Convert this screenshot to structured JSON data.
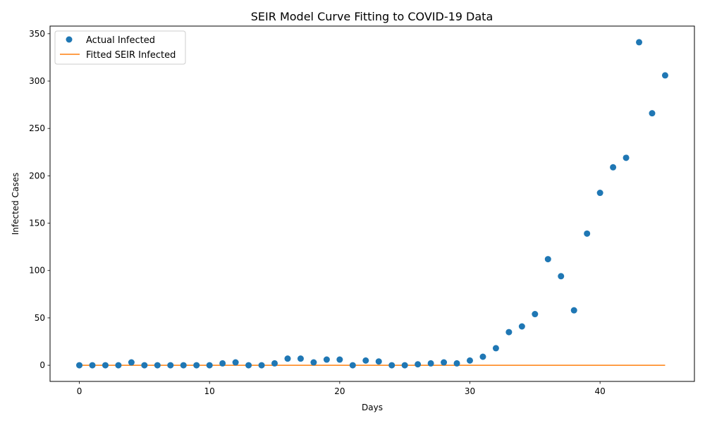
{
  "chart_data": {
    "type": "scatter",
    "title": "SEIR Model Curve Fitting to COVID-19 Data",
    "xlabel": "Days",
    "ylabel": "Infected Cases",
    "xlim": [
      -2.25,
      47.25
    ],
    "ylim": [
      -17.05,
      358.05
    ],
    "xticks": [
      0,
      10,
      20,
      30,
      40
    ],
    "yticks": [
      0,
      50,
      100,
      150,
      200,
      250,
      300,
      350
    ],
    "grid": false,
    "legend_position": "upper-left",
    "series": [
      {
        "name": "Actual Infected",
        "kind": "points",
        "color": "#1f77b4",
        "x": [
          0,
          1,
          2,
          3,
          4,
          5,
          6,
          7,
          8,
          9,
          10,
          11,
          12,
          13,
          14,
          15,
          16,
          17,
          18,
          19,
          20,
          21,
          22,
          23,
          24,
          25,
          26,
          27,
          28,
          29,
          30,
          31,
          32,
          33,
          34,
          35,
          36,
          37,
          38,
          39,
          40,
          41,
          42,
          43,
          44,
          45
        ],
        "y": [
          0,
          0,
          0,
          0,
          3,
          0,
          0,
          0,
          0,
          0,
          0,
          2,
          3,
          0,
          0,
          2,
          7,
          7,
          3,
          6,
          6,
          0,
          5,
          4,
          0,
          0,
          1,
          2,
          3,
          2,
          5,
          9,
          18,
          35,
          41,
          54,
          112,
          94,
          58,
          139,
          182,
          209,
          219,
          341,
          266,
          306
        ]
      },
      {
        "name": "Fitted SEIR Infected",
        "kind": "line",
        "color": "#ff7f0e",
        "x": [
          0,
          45
        ],
        "y": [
          0,
          0
        ]
      }
    ]
  }
}
